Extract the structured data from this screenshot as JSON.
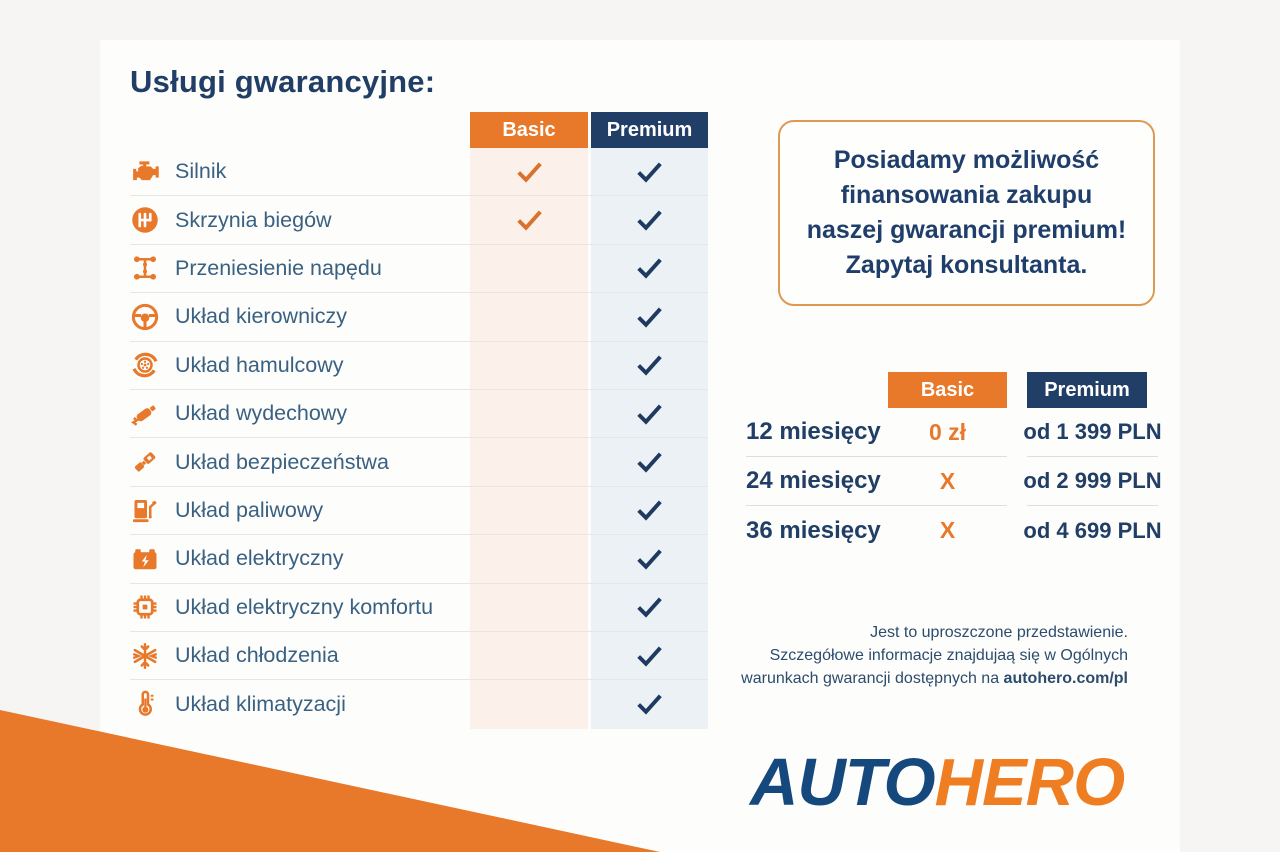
{
  "page": {
    "accent_orange": "#E8782A",
    "accent_navy": "#213E66",
    "basic_tint": "#FBF0EA",
    "premium_tint": "#ECF1F6"
  },
  "services": {
    "title": "Usługi gwarancyjne:",
    "columns": {
      "basic": "Basic",
      "premium": "Premium"
    },
    "rows": [
      {
        "label": "Silnik",
        "icon": "engine-icon",
        "basic": true,
        "premium": true
      },
      {
        "label": "Skrzynia biegów",
        "icon": "gearbox-icon",
        "basic": true,
        "premium": true
      },
      {
        "label": "Przeniesienie napędu",
        "icon": "drivetrain-icon",
        "basic": false,
        "premium": true
      },
      {
        "label": "Układ kierowniczy",
        "icon": "steering-wheel-icon",
        "basic": false,
        "premium": true
      },
      {
        "label": "Układ hamulcowy",
        "icon": "brake-disc-icon",
        "basic": false,
        "premium": true
      },
      {
        "label": "Układ wydechowy",
        "icon": "exhaust-icon",
        "basic": false,
        "premium": true
      },
      {
        "label": "Układ bezpieczeństwa",
        "icon": "seatbelt-icon",
        "basic": false,
        "premium": true
      },
      {
        "label": "Układ paliwowy",
        "icon": "fuel-pump-icon",
        "basic": false,
        "premium": true
      },
      {
        "label": "Układ elektryczny",
        "icon": "battery-icon",
        "basic": false,
        "premium": true
      },
      {
        "label": "Układ elektryczny komfortu",
        "icon": "chip-icon",
        "basic": false,
        "premium": true
      },
      {
        "label": "Układ chłodzenia",
        "icon": "snowflake-icon",
        "basic": false,
        "premium": true
      },
      {
        "label": "Układ klimatyzacji",
        "icon": "thermometer-icon",
        "basic": false,
        "premium": true
      }
    ]
  },
  "finance_box": {
    "line1": "Posiadamy możliwość",
    "line2": "finansowania zakupu",
    "line3": "naszej gwarancji premium!",
    "line4": "Zapytaj konsultanta."
  },
  "pricing": {
    "columns": {
      "basic": "Basic",
      "premium": "Premium"
    },
    "rows": [
      {
        "term": "12 miesięcy",
        "basic": "0 zł",
        "premium": "od 1 399 PLN"
      },
      {
        "term": "24 miesięcy",
        "basic": "X",
        "premium": "od 2 999 PLN"
      },
      {
        "term": "36 miesięcy",
        "basic": "X",
        "premium": "od 4 699 PLN"
      }
    ]
  },
  "fine_print": {
    "line1": "Jest to uproszczone przedstawienie.",
    "line2": "Szczegółowe informacje znajdujaą się w Ogólnych",
    "line3_prefix": "warunkach gwarancji dostępnych na ",
    "line3_bold": "autohero.com/pl"
  },
  "logo": {
    "auto": "AUTO",
    "hero": "HERO"
  }
}
